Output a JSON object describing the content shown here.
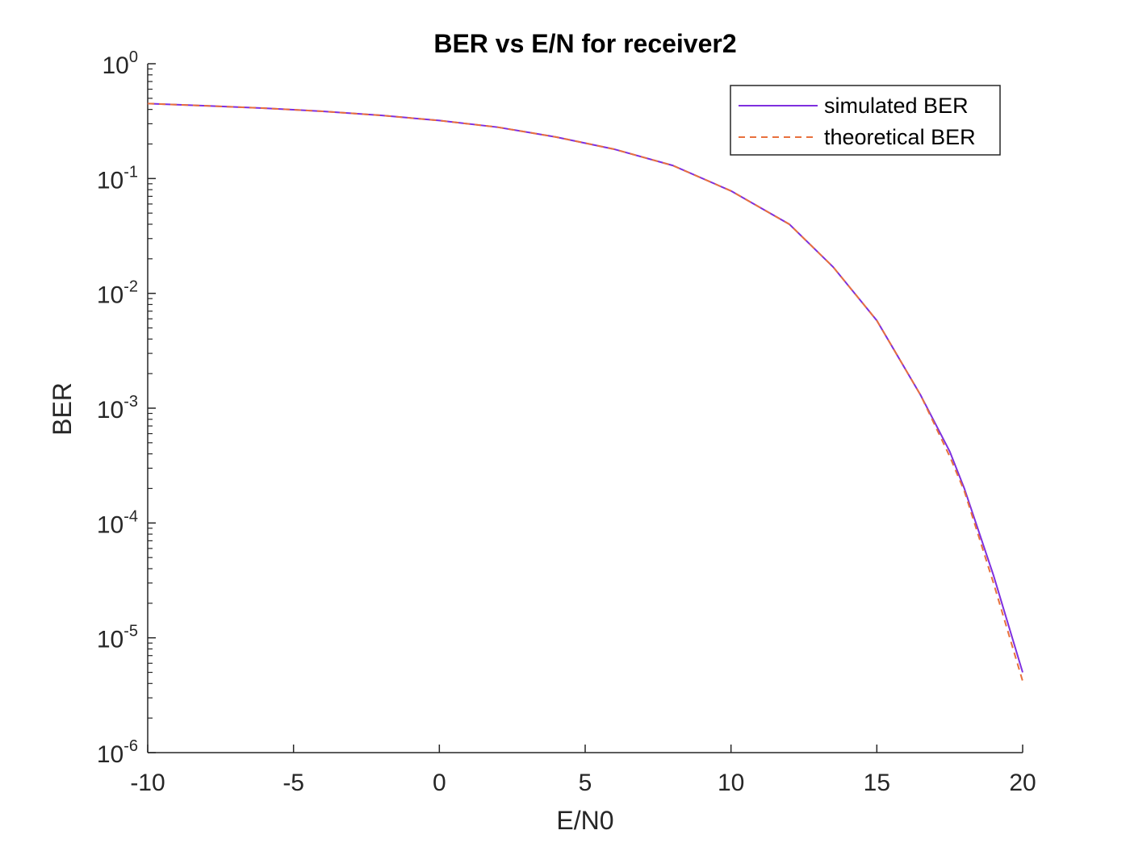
{
  "chart_data": {
    "type": "line",
    "title": "BER vs E/N for receiver2",
    "xlabel": "E/N0",
    "ylabel": "BER",
    "xlim": [
      -10,
      20
    ],
    "ylim": [
      1e-06,
      1
    ],
    "yscale": "log",
    "grid": false,
    "legend_position": "top-right",
    "x_ticks": [
      -10,
      -5,
      0,
      5,
      10,
      15,
      20
    ],
    "x_tick_labels": [
      "-10",
      "-5",
      "0",
      "5",
      "10",
      "15",
      "20"
    ],
    "y_tick_exponents": [
      "0",
      "-1",
      "-2",
      "-3",
      "-4",
      "-5",
      "-6"
    ],
    "y_tick_base": "10",
    "series": [
      {
        "name": "simulated BER",
        "color": "#7E2FDF",
        "style": "solid",
        "x": [
          -10,
          -8,
          -6,
          -4,
          -2,
          0,
          2,
          4,
          6,
          8,
          10,
          12,
          13.5,
          15,
          16.5,
          17.5,
          18,
          19,
          20
        ],
        "y": [
          0.45,
          0.43,
          0.41,
          0.385,
          0.355,
          0.32,
          0.28,
          0.23,
          0.18,
          0.13,
          0.078,
          0.04,
          0.017,
          0.0058,
          0.0013,
          0.00042,
          0.0002,
          3.5e-05,
          5e-06
        ]
      },
      {
        "name": "theoretical BER",
        "color": "#E8703D",
        "style": "dashed",
        "x": [
          -10,
          -8,
          -6,
          -4,
          -2,
          0,
          2,
          4,
          6,
          8,
          10,
          12,
          13.5,
          15,
          16.5,
          17.5,
          18,
          19,
          20
        ],
        "y": [
          0.45,
          0.43,
          0.41,
          0.385,
          0.355,
          0.32,
          0.28,
          0.23,
          0.18,
          0.13,
          0.078,
          0.04,
          0.017,
          0.0058,
          0.0013,
          0.00038,
          0.00019,
          3e-05,
          4.2e-06
        ]
      }
    ]
  }
}
